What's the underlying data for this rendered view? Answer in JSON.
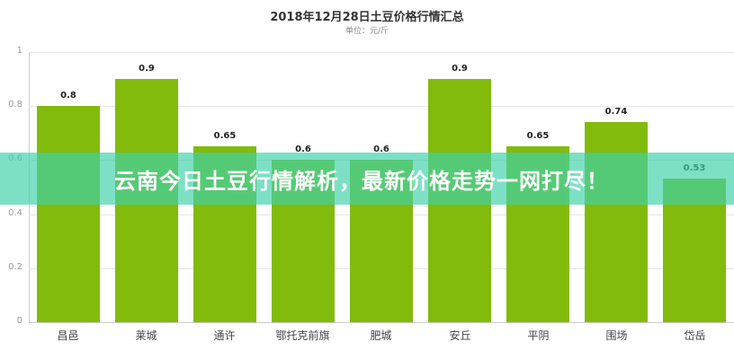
{
  "chart_data": {
    "type": "bar",
    "title": "2018年12月28日土豆价格行情汇总",
    "subtitle": "单位：元/斤",
    "xlabel": "",
    "ylabel": "",
    "ylim": [
      0,
      1
    ],
    "yticks": [
      "0",
      "0.2",
      "0.4",
      "0.6",
      "0.8",
      "1"
    ],
    "grid": true,
    "legend": null,
    "categories": [
      "昌邑",
      "莱城",
      "通许",
      "鄂托克前旗",
      "肥城",
      "安丘",
      "平阴",
      "围场",
      "岱岳"
    ],
    "values": [
      0.8,
      0.9,
      0.65,
      0.6,
      0.6,
      0.9,
      0.65,
      0.74,
      0.53
    ],
    "value_labels": [
      "0.8",
      "0.9",
      "0.65",
      "0.6",
      "0.6",
      "0.9",
      "0.65",
      "0.74",
      "0.53"
    ],
    "bar_color": "#82bb0b"
  },
  "banner": {
    "text": "云南今日土豆行情解析，最新价格走势一网打尽！",
    "color": "#40d2aa"
  }
}
